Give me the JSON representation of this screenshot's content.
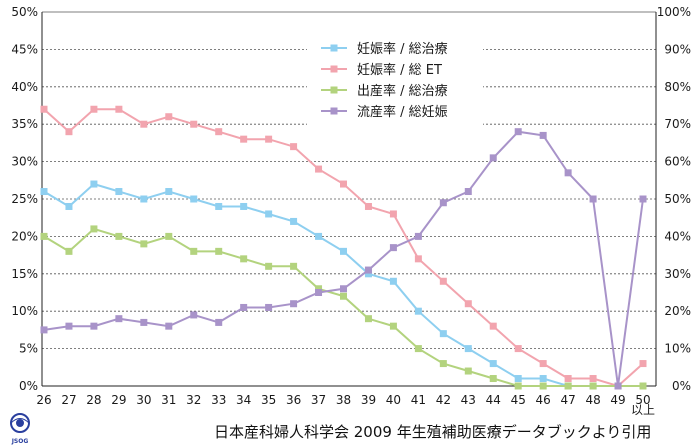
{
  "chart_data": {
    "type": "line",
    "categories": [
      "26",
      "27",
      "28",
      "29",
      "30",
      "31",
      "32",
      "33",
      "34",
      "35",
      "36",
      "37",
      "38",
      "39",
      "40",
      "41",
      "42",
      "43",
      "44",
      "45",
      "46",
      "47",
      "48",
      "49",
      "50"
    ],
    "category_sublabel": {
      "index": 24,
      "text": "以上"
    },
    "y_left": {
      "ticks": [
        "0%",
        "5%",
        "10%",
        "15%",
        "20%",
        "25%",
        "30%",
        "35%",
        "40%",
        "45%",
        "50%"
      ],
      "range": [
        0,
        50
      ]
    },
    "y_right": {
      "ticks": [
        "0%",
        "10%",
        "20%",
        "30%",
        "40%",
        "50%",
        "60%",
        "70%",
        "80%",
        "90%",
        "100%"
      ],
      "range": [
        0,
        100
      ]
    },
    "grid": "horizontal-dashed",
    "legend_position": "top-center",
    "series": [
      {
        "name": "妊娠率 / 総治療",
        "color": "#8ecff0",
        "axis": "left",
        "values": [
          26,
          24,
          27,
          26,
          25,
          26,
          25,
          24,
          24,
          23,
          22,
          20,
          18,
          15,
          14,
          10,
          7,
          5,
          3,
          1,
          1,
          0,
          0,
          0,
          0
        ]
      },
      {
        "name": "妊娠率 / 総 ET",
        "color": "#f2a4ae",
        "axis": "left",
        "values": [
          37,
          34,
          37,
          37,
          35,
          36,
          35,
          34,
          33,
          33,
          32,
          29,
          27,
          24,
          23,
          17,
          14,
          11,
          8,
          5,
          3,
          1,
          1,
          0,
          3
        ]
      },
      {
        "name": "出産率 / 総治療",
        "color": "#b3d37e",
        "axis": "left",
        "values": [
          20,
          18,
          21,
          20,
          19,
          20,
          18,
          18,
          17,
          16,
          16,
          13,
          12,
          9,
          8,
          5,
          3,
          2,
          1,
          0,
          0,
          0,
          0,
          0,
          0
        ]
      },
      {
        "name": "流産率 / 総妊娠",
        "color": "#a893c9",
        "axis": "right",
        "values": [
          15,
          16,
          16,
          18,
          17,
          16,
          19,
          17,
          21,
          21,
          22,
          25,
          26,
          31,
          37,
          40,
          49,
          52,
          61,
          68,
          67,
          57,
          50,
          0,
          50
        ]
      }
    ]
  },
  "source_text": "日本産科婦人科学会 2009 年生殖補助医療データブックより引用",
  "logo_text": "JSOG"
}
